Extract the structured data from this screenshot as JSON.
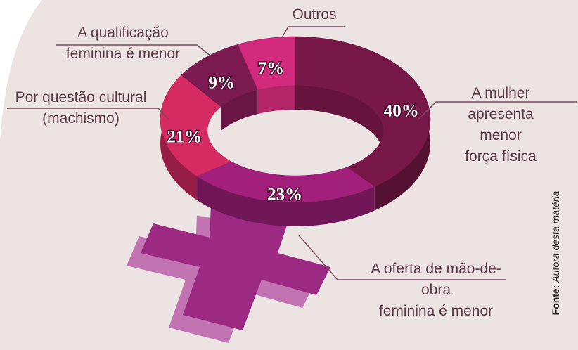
{
  "chart_data": {
    "type": "pie",
    "categories": [
      "A mulher apresenta\nmenor força física",
      "A oferta de mão-de-obra\nfeminina é menor",
      "Por questão cultural\n(machismo)",
      "A qualificação\nfeminina é menor",
      "Outros"
    ],
    "values": [
      40,
      23,
      21,
      9,
      7
    ],
    "value_labels": [
      "40%",
      "23%",
      "21%",
      "9%",
      "7%"
    ],
    "colors": [
      "#781848",
      "#a2207c",
      "#d62a62",
      "#7c1a52",
      "#d22a7c"
    ],
    "source_label": "Fonte:",
    "source": "Autora desta matéria"
  }
}
